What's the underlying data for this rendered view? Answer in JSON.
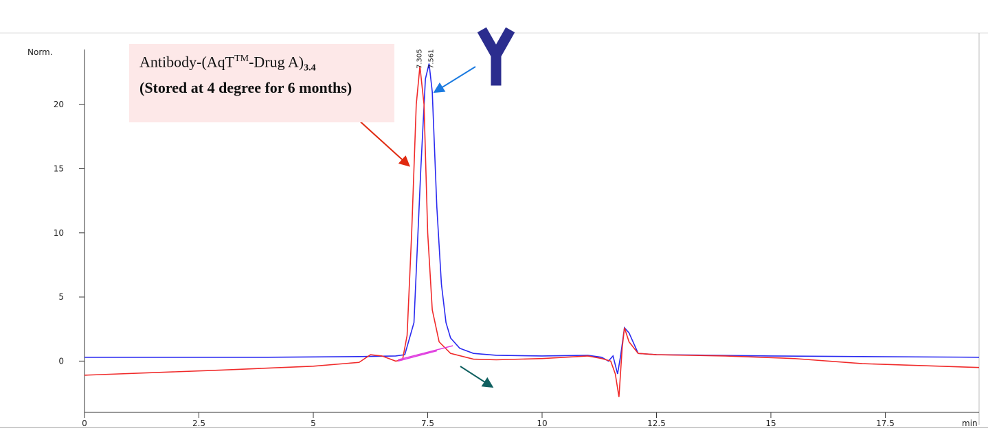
{
  "chart_data": {
    "type": "line",
    "y_label": "Norm.",
    "x_label": "min",
    "xlim": [
      0,
      19.55
    ],
    "ylim": [
      -4,
      24.3
    ],
    "xticks": [
      0,
      2.5,
      5,
      7.5,
      10,
      12.5,
      15,
      17.5
    ],
    "yticks": [
      0,
      5,
      10,
      15,
      20
    ],
    "series": [
      {
        "color": "#2a2af0",
        "x": [
          0,
          2,
          4,
          6,
          6.8,
          7.0,
          7.2,
          7.35,
          7.45,
          7.53,
          7.6,
          7.7,
          7.8,
          7.9,
          8.0,
          8.2,
          8.5,
          9,
          10,
          11,
          11.3,
          11.45,
          11.55,
          11.65,
          11.72,
          11.8,
          11.9,
          12.1,
          12.5,
          15,
          17,
          19.55
        ],
        "values": [
          0.3,
          0.3,
          0.3,
          0.35,
          0.4,
          0.5,
          3,
          15,
          22,
          23.2,
          21,
          12,
          6,
          3,
          1.8,
          1.0,
          0.6,
          0.45,
          0.4,
          0.45,
          0.3,
          0.0,
          0.4,
          -1.0,
          0.5,
          2.6,
          2.2,
          0.6,
          0.5,
          0.4,
          0.35,
          0.3
        ]
      },
      {
        "color": "#f02a2a",
        "x": [
          0,
          3,
          5,
          6,
          6.25,
          6.5,
          6.8,
          6.95,
          7.05,
          7.15,
          7.25,
          7.33,
          7.42,
          7.5,
          7.6,
          7.75,
          8,
          8.5,
          9,
          10,
          11,
          11.3,
          11.5,
          11.6,
          11.68,
          11.75,
          11.8,
          11.9,
          12.1,
          12.5,
          14,
          15.5,
          17,
          19.55
        ],
        "values": [
          -1.1,
          -0.7,
          -0.4,
          -0.1,
          0.5,
          0.4,
          0.0,
          0.1,
          2,
          10,
          20,
          23,
          20,
          10,
          4,
          1.5,
          0.6,
          0.15,
          0.1,
          0.2,
          0.4,
          0.2,
          0.0,
          -1,
          -2.8,
          1.0,
          2.6,
          1.5,
          0.6,
          0.5,
          0.4,
          0.2,
          -0.2,
          -0.5
        ]
      },
      {
        "color": "#e040e0",
        "x": [
          6.85,
          8.05
        ],
        "values": [
          0.1,
          1.2
        ]
      },
      {
        "color": "#e040e0",
        "x": [
          6.85,
          7.7
        ],
        "values": [
          0.0,
          0.8
        ]
      }
    ],
    "peak_labels": [
      {
        "x": 7.305,
        "label": "7.305"
      },
      {
        "x": 7.561,
        "label": "7.561"
      }
    ],
    "annotation": {
      "line1": "Antibody-(AqT",
      "sup": "TM",
      "line1b": "-Drug A)",
      "sub": "3.4",
      "line2": "(Stored at 4 degree for 6 months)"
    }
  }
}
